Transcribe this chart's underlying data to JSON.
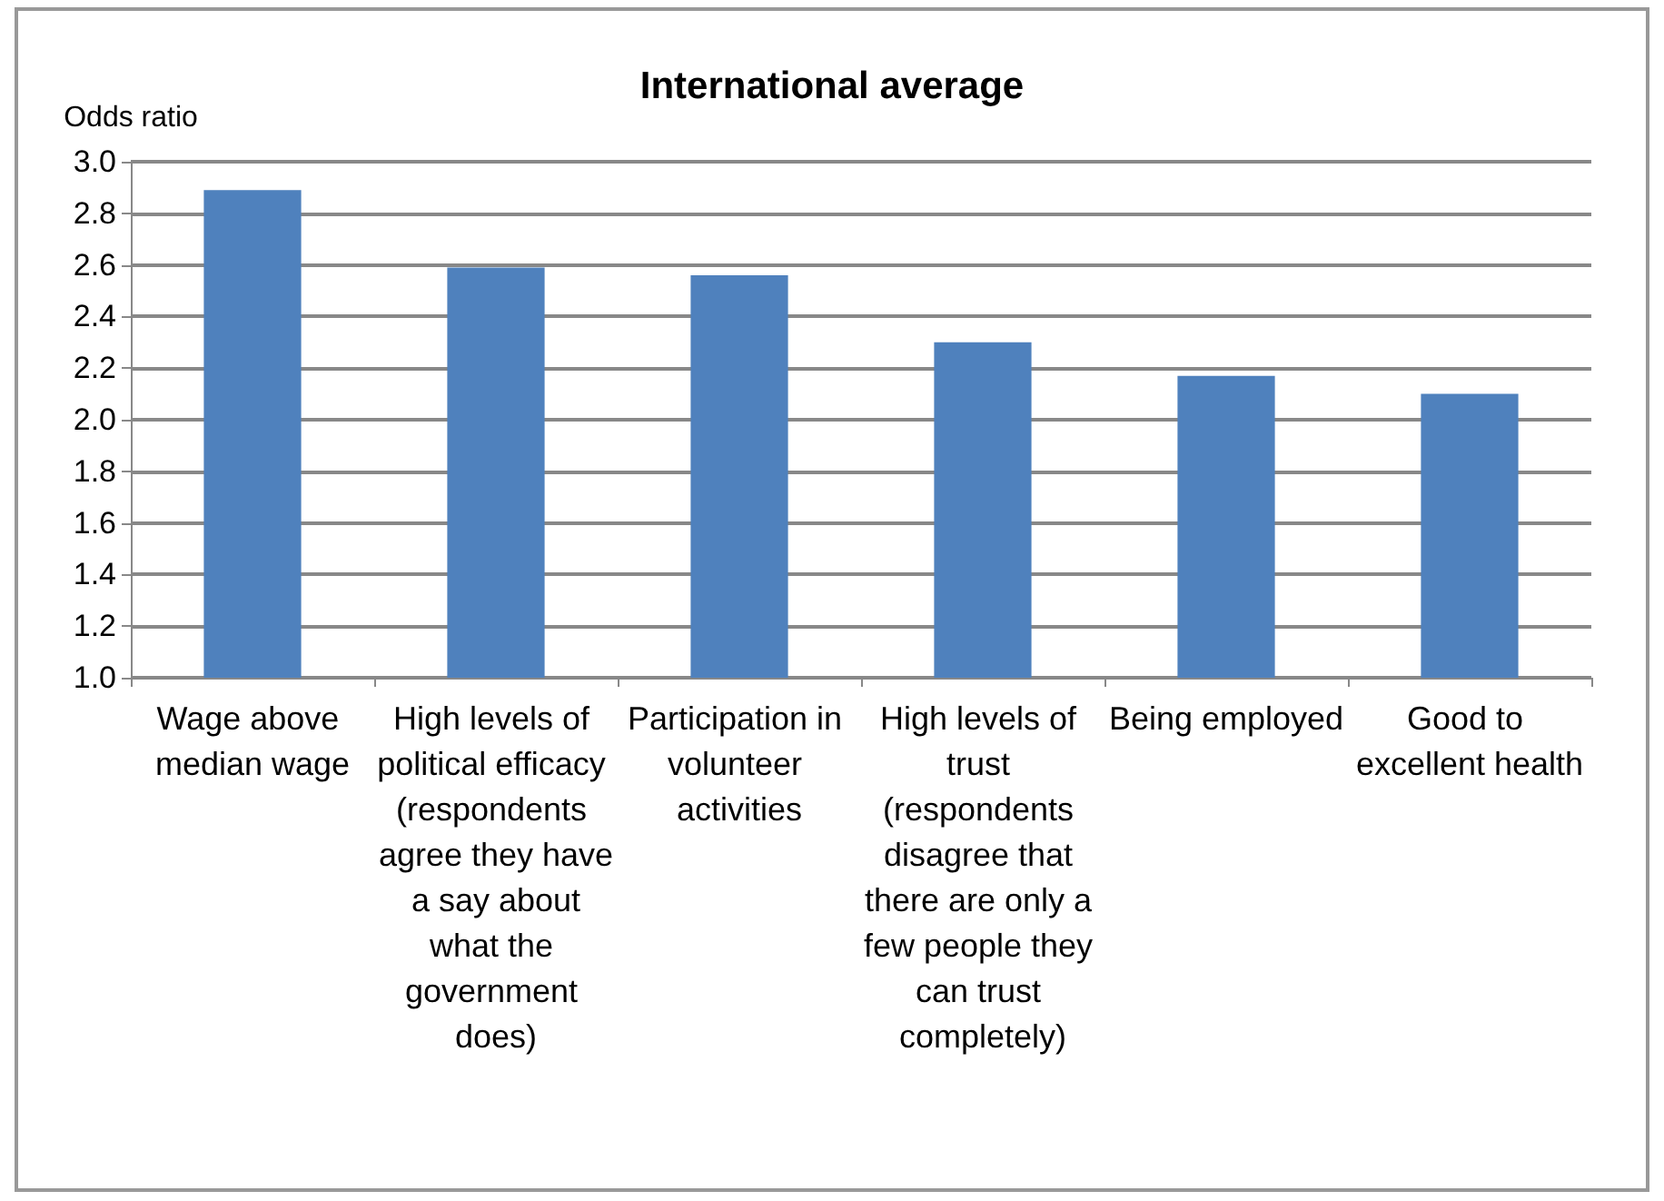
{
  "chart_data": {
    "type": "bar",
    "title": "International average",
    "ylabel": "Odds ratio",
    "categories": [
      "Wage above median wage",
      "High levels of political efficacy (respondents agree they have a say about what the government does)",
      "Participation in volunteer activities",
      "High levels of trust (respondents disagree that there are only a few people they can trust completely)",
      "Being employed",
      "Good to excellent health"
    ],
    "values": [
      2.89,
      2.59,
      2.56,
      2.3,
      2.17,
      2.1
    ],
    "color": "#4f81bd",
    "ylim": [
      1.0,
      3.0
    ],
    "yticks": [
      {
        "value": 1.0,
        "label": "1.0"
      },
      {
        "value": 1.2,
        "label": "1.2"
      },
      {
        "value": 1.4,
        "label": "1.4"
      },
      {
        "value": 1.6,
        "label": "1.6"
      },
      {
        "value": 1.8,
        "label": "1.8"
      },
      {
        "value": 2.0,
        "label": "2.0"
      },
      {
        "value": 2.2,
        "label": "2.2"
      },
      {
        "value": 2.4,
        "label": "2.4"
      },
      {
        "value": 2.6,
        "label": "2.6"
      },
      {
        "value": 2.8,
        "label": "2.8"
      },
      {
        "value": 3.0,
        "label": "3.0"
      }
    ],
    "grid": "y"
  }
}
